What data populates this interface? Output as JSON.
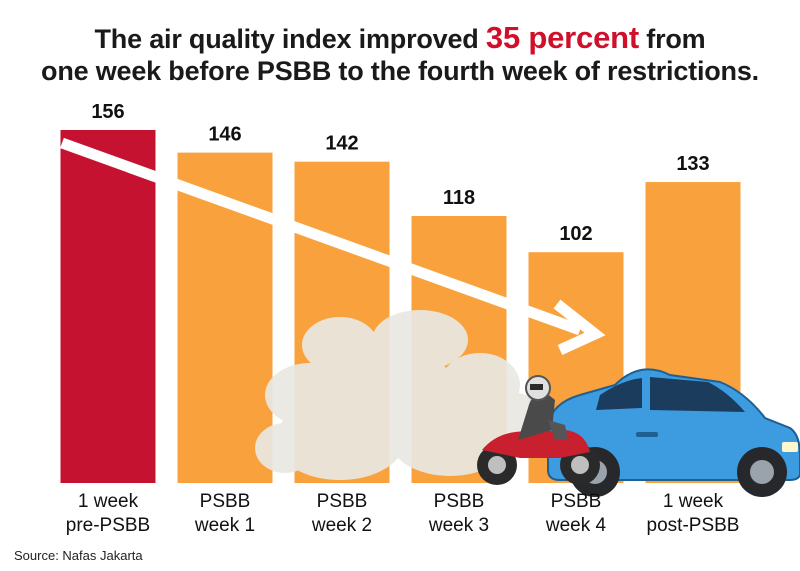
{
  "title": {
    "line1_before": "The air quality index improved ",
    "highlight": "35 percent",
    "line1_after": " from",
    "line2": "one week before PSBB to the fourth week of restrictions."
  },
  "source": "Source: Nafas Jakarta",
  "colors": {
    "highlight": "#d0102a",
    "pre": "#c41230",
    "bar": "#f9a23d",
    "arrow": "#ffffff"
  },
  "chart_data": {
    "type": "bar",
    "categories": [
      [
        "1 week",
        "pre-PSBB"
      ],
      [
        "PSBB",
        "week 1"
      ],
      [
        "PSBB",
        "week 2"
      ],
      [
        "PSBB",
        "week 3"
      ],
      [
        "PSBB",
        "week 4"
      ],
      [
        "1 week",
        "post-PSBB"
      ]
    ],
    "values": [
      156,
      146,
      142,
      118,
      102,
      133
    ],
    "data_labels": [
      "156",
      "146",
      "142",
      "118",
      "102",
      "133"
    ],
    "bar_colors": [
      "#c41230",
      "#f9a23d",
      "#f9a23d",
      "#f9a23d",
      "#f9a23d",
      "#f9a23d"
    ],
    "ylim": [
      0,
      156
    ],
    "grid": false,
    "legend": "none",
    "annotations": [
      "downward-trend-arrow",
      "motorcycle-illustration",
      "car-illustration",
      "exhaust-smoke-illustration"
    ]
  }
}
